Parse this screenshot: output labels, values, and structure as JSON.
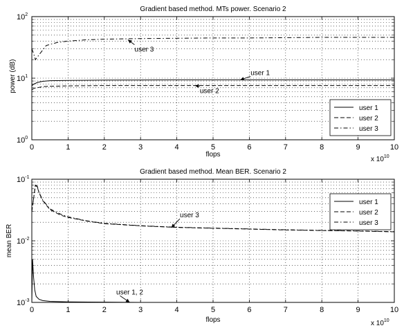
{
  "chart_data": [
    {
      "type": "line",
      "title": "Gradient based method. MTs power. Scenario 2",
      "xlabel": "flops",
      "ylabel": "power (dB)",
      "x_scale_label": "x 10",
      "x_scale_exponent": "10",
      "xlim": [
        0,
        10
      ],
      "ylim": [
        1,
        100
      ],
      "y_scale": "log",
      "grid": true,
      "legend_position": "bottom-right",
      "x_ticks": [
        "0",
        "1",
        "2",
        "3",
        "4",
        "5",
        "6",
        "7",
        "8",
        "9",
        "10"
      ],
      "y_ticks": [
        {
          "value": 1,
          "base": "10",
          "exp": "0"
        },
        {
          "value": 10,
          "base": "10",
          "exp": "1"
        },
        {
          "value": 100,
          "base": "10",
          "exp": "2"
        }
      ],
      "series": [
        {
          "name": "user 1",
          "style": "solid",
          "x": [
            0,
            0.05,
            0.15,
            0.3,
            0.5,
            1,
            2,
            3,
            4,
            5,
            6,
            7,
            8,
            9,
            10
          ],
          "y": [
            7.5,
            8.0,
            8.5,
            8.9,
            9.1,
            9.2,
            9.3,
            9.35,
            9.4,
            9.4,
            9.4,
            9.4,
            9.4,
            9.4,
            9.4
          ]
        },
        {
          "name": "user 2",
          "style": "dashed",
          "x": [
            0,
            0.05,
            0.15,
            0.3,
            0.5,
            1,
            2,
            3,
            4,
            5,
            6,
            7,
            8,
            9,
            10
          ],
          "y": [
            6.5,
            6.8,
            7.0,
            7.3,
            7.4,
            7.5,
            7.6,
            7.6,
            7.6,
            7.6,
            7.6,
            7.6,
            7.6,
            7.6,
            7.6
          ]
        },
        {
          "name": "user 3",
          "style": "dashdot",
          "x": [
            0,
            0.05,
            0.1,
            0.2,
            0.4,
            0.7,
            1,
            1.5,
            2,
            2.5,
            3,
            4,
            5,
            6,
            7,
            8,
            9,
            10
          ],
          "y": [
            30,
            25,
            20,
            24,
            34,
            38,
            40,
            42,
            43,
            43.5,
            44,
            44.5,
            45,
            45,
            45.5,
            46,
            46,
            46
          ]
        }
      ],
      "annotations": [
        {
          "text": "user 3",
          "x": 3.1,
          "y": 27,
          "arrow_to_x": 2.65,
          "arrow_to_y": 42
        },
        {
          "text": "user 1",
          "x": 6.3,
          "y": 11.3,
          "arrow_to_x": 5.75,
          "arrow_to_y": 9.35
        },
        {
          "text": "user 2",
          "x": 4.9,
          "y": 5.7,
          "arrow_to_x": 4.5,
          "arrow_to_y": 7.6
        }
      ]
    },
    {
      "type": "line",
      "title": "Gradient based method. Mean BER. Scenario 2",
      "xlabel": "flops",
      "ylabel": "mean BER",
      "x_scale_label": "x 10",
      "x_scale_exponent": "10",
      "xlim": [
        0,
        10
      ],
      "ylim": [
        0.001,
        0.1
      ],
      "y_scale": "log",
      "grid": true,
      "legend_position": "top-right",
      "x_ticks": [
        "0",
        "1",
        "2",
        "3",
        "4",
        "5",
        "6",
        "7",
        "8",
        "9",
        "10"
      ],
      "y_ticks": [
        {
          "value": 0.001,
          "base": "10",
          "exp": "-3"
        },
        {
          "value": 0.01,
          "base": "10",
          "exp": "-2"
        },
        {
          "value": 0.1,
          "base": "10",
          "exp": "-1"
        }
      ],
      "series": [
        {
          "name": "user 1",
          "style": "solid",
          "x": [
            0,
            0.02,
            0.05,
            0.08,
            0.12,
            0.2,
            0.3,
            0.5,
            1,
            2,
            3,
            4,
            5,
            6,
            7,
            8,
            9,
            10
          ],
          "y": [
            0.001,
            0.005,
            0.0025,
            0.0016,
            0.00125,
            0.00112,
            0.00107,
            0.00104,
            0.00102,
            0.00101,
            0.001,
            0.001,
            0.001,
            0.001,
            0.001,
            0.001,
            0.001,
            0.001
          ]
        },
        {
          "name": "user 2",
          "style": "dashed",
          "x": [
            0,
            0.1,
            0.15,
            0.2,
            0.3,
            0.5,
            0.8,
            1,
            1.5,
            2,
            3,
            4,
            5,
            6,
            7,
            8,
            9,
            10
          ],
          "y": [
            0.03,
            0.08,
            0.075,
            0.06,
            0.045,
            0.032,
            0.026,
            0.024,
            0.021,
            0.019,
            0.0175,
            0.0165,
            0.016,
            0.0155,
            0.015,
            0.0147,
            0.0144,
            0.014
          ]
        },
        {
          "name": "user 3",
          "style": "dashdot",
          "x": [
            0,
            0.1,
            0.15,
            0.2,
            0.3,
            0.5,
            0.8,
            1,
            1.5,
            2,
            3,
            4,
            5,
            6,
            7,
            8,
            9,
            10
          ],
          "y": [
            0.03,
            0.082,
            0.077,
            0.061,
            0.046,
            0.033,
            0.027,
            0.0245,
            0.0212,
            0.0192,
            0.0176,
            0.0166,
            0.0161,
            0.0156,
            0.0151,
            0.0148,
            0.0145,
            0.0141
          ]
        }
      ],
      "annotations": [
        {
          "text": "user 3",
          "x": 4.35,
          "y": 0.024,
          "arrow_to_x": 3.85,
          "arrow_to_y": 0.0163
        },
        {
          "text": "user 1, 2",
          "x": 2.7,
          "y": 0.00135,
          "arrow_to_x": 2.7,
          "arrow_to_y": 0.001
        }
      ]
    }
  ]
}
